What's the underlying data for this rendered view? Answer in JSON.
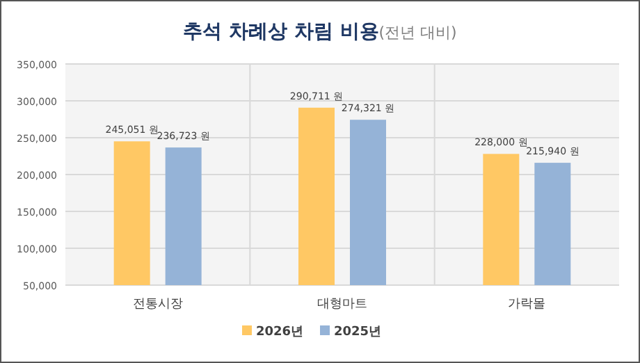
{
  "chart_data": {
    "type": "bar",
    "title": "**추석 차례상 차림 비용**(전년 대비)",
    "categories": [
      "전통시장",
      "대형마트",
      "가락몰"
    ],
    "series": [
      {
        "name": "2026년",
        "color": "#ffc864",
        "values": [
          245051,
          290711,
          228000
        ],
        "value_labels": [
          "245,051 원",
          "290,711 원",
          "228,000 원"
        ]
      },
      {
        "name": "2025년",
        "color": "#95b3d7",
        "values": [
          236723,
          274321,
          215940
        ],
        "value_labels": [
          "236,723 원",
          "274,321 원",
          "215,940 원"
        ]
      }
    ],
    "ylim": [
      50000,
      350000
    ],
    "yticks": [
      {
        "value": 50000,
        "label": "50,000"
      },
      {
        "value": 100000,
        "label": "100,000"
      },
      {
        "value": 150000,
        "label": "150,000"
      },
      {
        "value": 200000,
        "label": "200,000"
      },
      {
        "value": 250000,
        "label": "250,000"
      },
      {
        "value": 300000,
        "label": "300,000"
      },
      {
        "value": 350000,
        "label": "350,000"
      }
    ],
    "grid": true,
    "legend": "bottom"
  }
}
